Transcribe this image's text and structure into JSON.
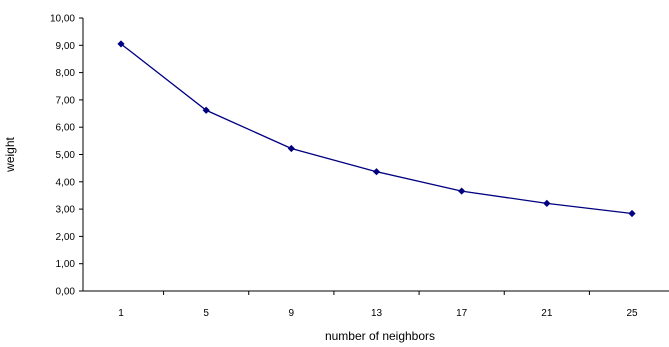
{
  "chart_data": {
    "type": "line",
    "title": "",
    "xlabel": "number of neighbors",
    "ylabel": "weight",
    "categories": [
      "1",
      "5",
      "9",
      "13",
      "17",
      "21",
      "25"
    ],
    "series": [
      {
        "values": [
          9.05,
          6.62,
          5.22,
          4.37,
          3.66,
          3.21,
          2.84
        ]
      }
    ],
    "ylim": [
      0,
      10
    ],
    "y_ticks": [
      "0,00",
      "1,00",
      "2,00",
      "3,00",
      "4,00",
      "5,00",
      "6,00",
      "7,00",
      "8,00",
      "9,00",
      "10,00"
    ],
    "grid": false,
    "legend": "none",
    "colors": {
      "series": "#000080",
      "axis": "#000000",
      "text": "#000000"
    }
  }
}
